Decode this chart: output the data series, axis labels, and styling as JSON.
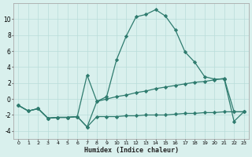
{
  "xlabel": "Humidex (Indice chaleur)",
  "x": [
    0,
    1,
    2,
    3,
    4,
    5,
    6,
    7,
    8,
    9,
    10,
    11,
    12,
    13,
    14,
    15,
    16,
    17,
    18,
    19,
    20,
    21,
    22,
    23
  ],
  "line1": [
    -0.8,
    -1.5,
    -1.2,
    -2.4,
    -2.3,
    -2.3,
    -2.2,
    -3.5,
    -2.2,
    -2.2,
    -2.2,
    -2.1,
    -2.1,
    -2.0,
    -2.0,
    -2.0,
    -1.9,
    -1.8,
    -1.8,
    -1.7,
    -1.7,
    -1.6,
    -1.6,
    -1.6
  ],
  "line2": [
    -0.8,
    -1.5,
    -1.2,
    -2.4,
    -2.3,
    -2.3,
    -2.2,
    3.0,
    -0.3,
    0.3,
    4.9,
    7.9,
    10.3,
    10.6,
    11.2,
    10.4,
    8.7,
    5.9,
    4.6,
    2.8,
    2.5,
    2.5,
    -2.8,
    -1.6
  ],
  "line3": [
    -0.8,
    -1.5,
    -1.2,
    -2.4,
    -2.3,
    -2.3,
    -2.2,
    -3.5,
    -0.3,
    0.0,
    0.3,
    0.5,
    0.8,
    1.0,
    1.3,
    1.5,
    1.7,
    1.9,
    2.1,
    2.2,
    2.4,
    2.6,
    -1.6,
    -1.6
  ],
  "color": "#2e7b6e",
  "bg_color": "#d9f0ed",
  "grid_color": "#b8ddd9",
  "ylim": [
    -5,
    12
  ],
  "yticks": [
    -4,
    -2,
    0,
    2,
    4,
    6,
    8,
    10
  ],
  "xticks": [
    0,
    1,
    2,
    3,
    4,
    5,
    6,
    7,
    8,
    9,
    10,
    11,
    12,
    13,
    14,
    15,
    16,
    17,
    18,
    19,
    20,
    21,
    22,
    23
  ]
}
